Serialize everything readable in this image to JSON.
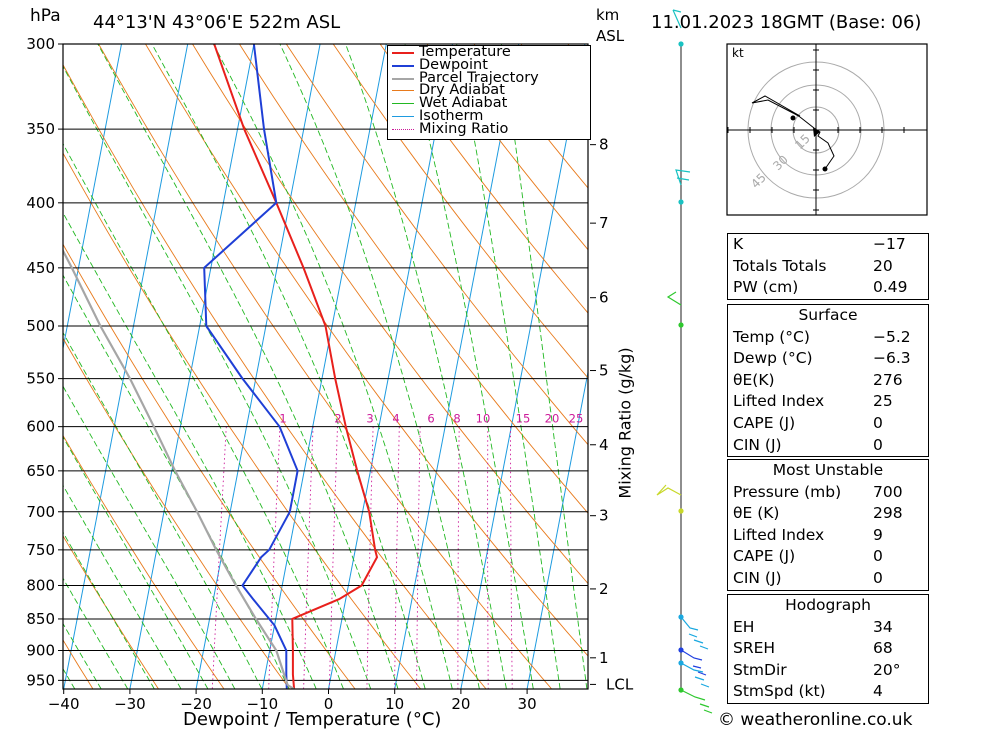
{
  "header": {
    "pressure_unit": "hPa",
    "location": "44°13'N  43°06'E  522m  ASL",
    "height_unit_km": "km",
    "height_unit_asl": "ASL",
    "datetime": "11.01.2023  18GMT  (Base: 06)"
  },
  "chart_data": {
    "type": "skew-t",
    "xlabel": "Dewpoint / Temperature (°C)",
    "ylabel": "hPa",
    "x_ticks": [
      "−40",
      "−30",
      "−20",
      "−10",
      "0",
      "10",
      "20",
      "30"
    ],
    "pressure_levels": [
      300,
      350,
      400,
      450,
      500,
      550,
      600,
      650,
      700,
      750,
      800,
      850,
      900,
      950
    ],
    "height_ticks": [
      {
        "km": "8",
        "p": 360
      },
      {
        "km": "7",
        "p": 415
      },
      {
        "km": "6",
        "p": 475
      },
      {
        "km": "5",
        "p": 542
      },
      {
        "km": "4",
        "p": 620
      },
      {
        "km": "3",
        "p": 705
      },
      {
        "km": "2",
        "p": 805
      },
      {
        "km": "1",
        "p": 912
      },
      {
        "km": "LCL",
        "p": 957
      }
    ],
    "mixing_ratio_label": "Mixing Ratio (g/kg)",
    "mixing_ratios": [
      "1",
      "2",
      "3",
      "4",
      "6",
      "8",
      "10",
      "15",
      "20",
      "25"
    ],
    "legend": [
      "Temperature",
      "Dewpoint",
      "Parcel Trajectory",
      "Dry Adiabat",
      "Wet Adiabat",
      "Isotherm",
      "Mixing Ratio"
    ],
    "colors": {
      "temperature": "#e8201c",
      "dewpoint": "#1f3fd6",
      "parcel": "#a6a6a6",
      "dry_adiabat": "#e87a1c",
      "wet_adiabat": "#22b822",
      "isotherm": "#1e9be0",
      "mixing_ratio": "#cc1a99"
    },
    "series": [
      {
        "name": "Temperature",
        "points": [
          [
            -5.2,
            965
          ],
          [
            -5.8,
            940
          ],
          [
            -6.5,
            900
          ],
          [
            -7.5,
            850
          ],
          [
            -1,
            820
          ],
          [
            2,
            800
          ],
          [
            3.5,
            760
          ],
          [
            3,
            750
          ],
          [
            1,
            700
          ],
          [
            -2,
            650
          ],
          [
            -5,
            600
          ],
          [
            -8,
            550
          ],
          [
            -11,
            500
          ],
          [
            -16,
            450
          ],
          [
            -22,
            400
          ],
          [
            -29,
            350
          ],
          [
            -36,
            300
          ]
        ]
      },
      {
        "name": "Dewpoint",
        "points": [
          [
            -6.3,
            965
          ],
          [
            -6.8,
            940
          ],
          [
            -7.5,
            900
          ],
          [
            -10,
            860
          ],
          [
            -14,
            820
          ],
          [
            -16,
            800
          ],
          [
            -14,
            760
          ],
          [
            -13,
            750
          ],
          [
            -11,
            700
          ],
          [
            -11,
            650
          ],
          [
            -15,
            600
          ],
          [
            -22,
            550
          ],
          [
            -29,
            500
          ],
          [
            -31,
            450
          ],
          [
            -22,
            400
          ],
          [
            -26,
            350
          ],
          [
            -30,
            300
          ]
        ]
      },
      {
        "name": "Parcel Trajectory",
        "points": [
          [
            -5.2,
            965
          ],
          [
            -6.3,
            958
          ],
          [
            -9,
            900
          ],
          [
            -13,
            850
          ],
          [
            -17,
            800
          ],
          [
            -21,
            750
          ],
          [
            -25,
            700
          ],
          [
            -29.5,
            650
          ],
          [
            -34,
            600
          ],
          [
            -39,
            550
          ],
          [
            -45,
            500
          ],
          [
            -51,
            450
          ],
          [
            -58,
            400
          ],
          [
            -66,
            350
          ],
          [
            -74,
            300
          ]
        ]
      }
    ]
  },
  "hodograph": {
    "unit": "kt",
    "rings": [
      "15",
      "30",
      "45"
    ]
  },
  "indices": {
    "k_label": "K",
    "k": "−17",
    "tt_label": "Totals Totals",
    "tt": "20",
    "pw_label": "PW (cm)",
    "pw": "0.49"
  },
  "surface": {
    "title": "Surface",
    "temp_label": "Temp (°C)",
    "temp": "−5.2",
    "dewp_label": "Dewp (°C)",
    "dewp": "−6.3",
    "theta_label": "θE(K)",
    "theta": "276",
    "li_label": "Lifted Index",
    "li": "25",
    "cape_label": "CAPE (J)",
    "cape": "0",
    "cin_label": "CIN (J)",
    "cin": "0"
  },
  "most_unstable": {
    "title": "Most Unstable",
    "pres_label": "Pressure (mb)",
    "pres": "700",
    "theta_label": "θE (K)",
    "theta": "298",
    "li_label": "Lifted Index",
    "li": "9",
    "cape_label": "CAPE (J)",
    "cape": "0",
    "cin_label": "CIN (J)",
    "cin": "0"
  },
  "hodograph_stats": {
    "title": "Hodograph",
    "eh_label": "EH",
    "eh": "34",
    "sreh_label": "SREH",
    "sreh": "68",
    "stmdir_label": "StmDir",
    "stmdir": "20°",
    "stmspd_label": "StmSpd (kt)",
    "stmspd": "4"
  },
  "footer": {
    "credit": "© weatheronline.co.uk"
  }
}
